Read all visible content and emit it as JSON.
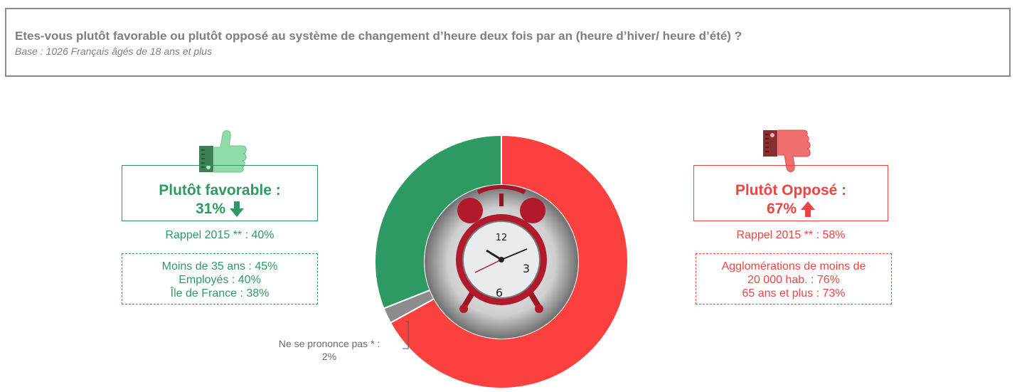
{
  "header": {
    "question": "Etes-vous plutôt favorable ou plutôt opposé au système de changement d’heure deux fois par an (heure d’hiver/ heure d’été) ?",
    "base": "Base : 1026 Français âgés de 18 ans et plus"
  },
  "favorable": {
    "label": "Plutôt favorable :",
    "value": "31%",
    "trend": "down",
    "rappel": "Rappel 2015 ** : 40%",
    "details": [
      "Moins de 35 ans : 45%",
      "Employés : 40%",
      "Île de France : 38%"
    ],
    "color": "#2e9a63",
    "icon": "thumbs-up-icon"
  },
  "oppose": {
    "label": "Plutôt Opposé :",
    "value": "67%",
    "trend": "up",
    "rappel": "Rappel 2015 ** : 58%",
    "details": [
      "Agglomérations de moins de",
      "20 000 hab. : 76%",
      "65 ans et plus : 73%"
    ],
    "color": "#ef4444",
    "icon": "thumbs-down-icon"
  },
  "nsp": {
    "label": "Ne se prononce pas * :",
    "value": "2%"
  },
  "chart_data": {
    "type": "pie",
    "donut": true,
    "center_image": "alarm-clock",
    "slices": [
      {
        "name": "Plutôt Opposé",
        "value": 67,
        "color": "#fb4040"
      },
      {
        "name": "Ne se prononce pas",
        "value": 2,
        "color": "#8c8c8c"
      },
      {
        "name": "Plutôt favorable",
        "value": 31,
        "color": "#2e9a63"
      }
    ],
    "start": "top",
    "direction": "clockwise"
  }
}
